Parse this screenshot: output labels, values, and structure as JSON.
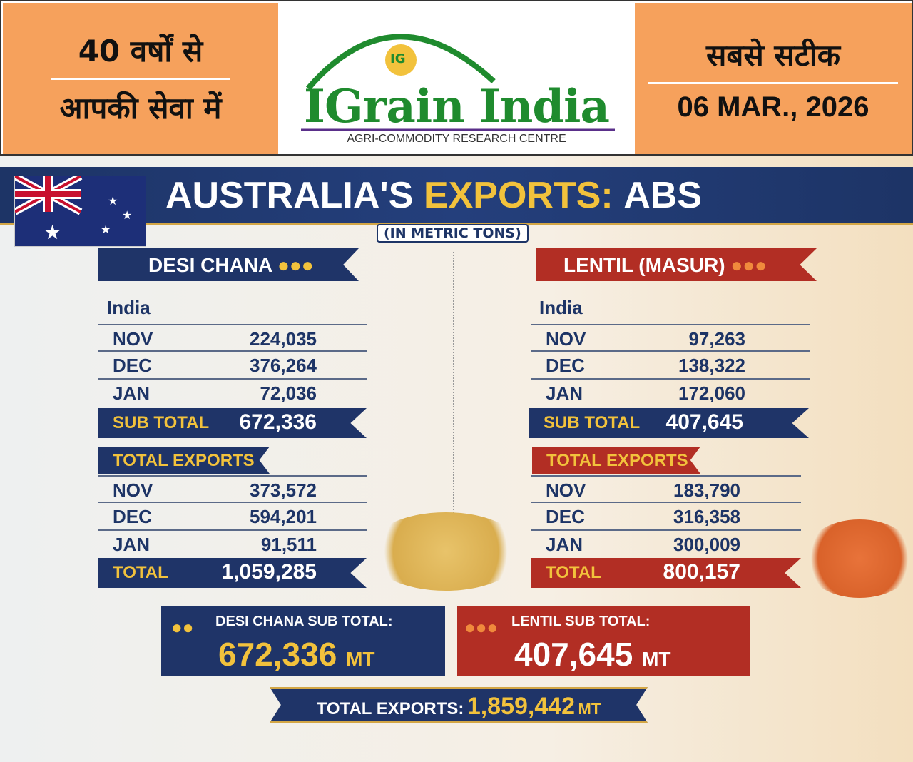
{
  "header": {
    "left_line1": "40 वर्षों से",
    "left_line2": "आपकी सेवा में",
    "brand": "IGrain India",
    "brand_tagline": "AGRI-COMMODITY RESEARCH CENTRE",
    "logo_mark": "IG",
    "right_line1": "सबसे सटीक",
    "date": "06 MAR., 2026"
  },
  "banner": {
    "title_part1": "AUSTRALIA'S",
    "title_part2": "EXPORTS:",
    "title_part3": "ABS",
    "unit": "(IN METRIC TONS)"
  },
  "colors": {
    "navy": "#1f3468",
    "red": "#b22e24",
    "gold": "#f2c23c",
    "orange": "#f6a15c",
    "green": "#1f8b2e"
  },
  "chana": {
    "title": "DESI CHANA",
    "india_label": "India",
    "india_rows": [
      {
        "month": "NOV",
        "value": "224,035"
      },
      {
        "month": "DEC",
        "value": "376,264"
      },
      {
        "month": "JAN",
        "value": "72,036"
      }
    ],
    "subtotal_label": "SUB TOTAL",
    "subtotal": "672,336",
    "total_exports_label": "TOTAL EXPORTS",
    "total_rows": [
      {
        "month": "NOV",
        "value": "373,572"
      },
      {
        "month": "DEC",
        "value": "594,201"
      },
      {
        "month": "JAN",
        "value": "91,511"
      }
    ],
    "total_label": "TOTAL",
    "total": "1,059,285"
  },
  "lentil": {
    "title": "LENTIL (MASUR)",
    "india_label": "India",
    "india_rows": [
      {
        "month": "NOV",
        "value": "97,263"
      },
      {
        "month": "DEC",
        "value": "138,322"
      },
      {
        "month": "JAN",
        "value": "172,060"
      }
    ],
    "subtotal_label": "SUB TOTAL",
    "subtotal": "407,645",
    "total_exports_label": "TOTAL EXPORTS",
    "total_rows": [
      {
        "month": "NOV",
        "value": "183,790"
      },
      {
        "month": "DEC",
        "value": "316,358"
      },
      {
        "month": "JAN",
        "value": "300,009"
      }
    ],
    "total_label": "TOTAL",
    "total": "800,157"
  },
  "summary": {
    "chana_label": "DESI CHANA SUB TOTAL:",
    "chana_value": "672,336",
    "lentil_label": "LENTIL SUB TOTAL:",
    "lentil_value": "407,645",
    "unit": "MT",
    "total_label": "TOTAL EXPORTS:",
    "total_value": "1,859,442"
  }
}
